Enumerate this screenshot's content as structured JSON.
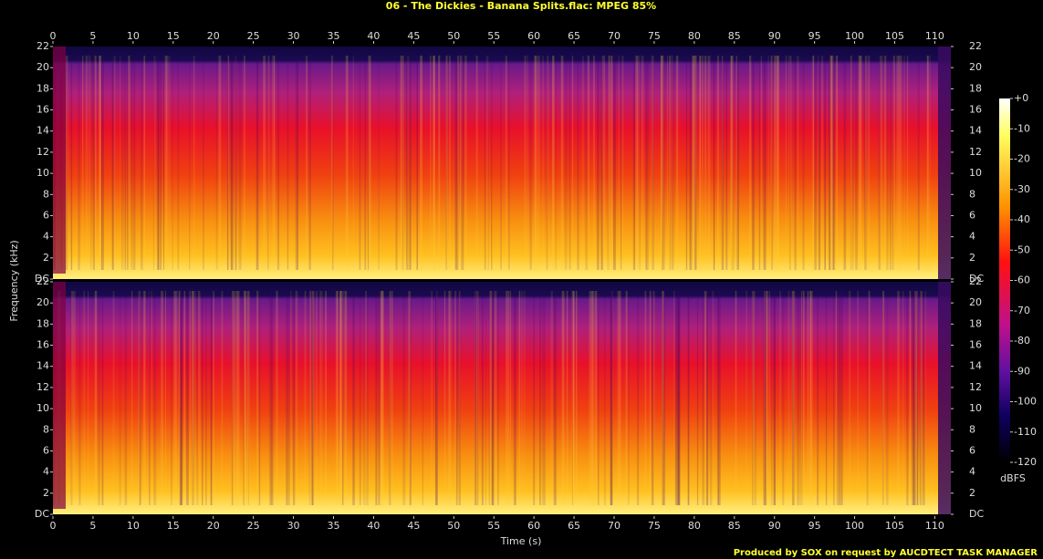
{
  "chart_data": {
    "type": "spectrogram",
    "title": "06 - The Dickies - Banana Splits.flac: MPEG 85%",
    "x_label": "Time (s)",
    "y_label": "Frequency (kHz)",
    "xlim": [
      0,
      112
    ],
    "xticks": [
      0,
      5,
      10,
      15,
      20,
      25,
      30,
      35,
      40,
      45,
      50,
      55,
      60,
      65,
      70,
      75,
      80,
      85,
      90,
      95,
      100,
      105,
      110
    ],
    "ylim": [
      0,
      22
    ],
    "yticks": [
      {
        "value": 0,
        "label": "DC"
      },
      2,
      4,
      6,
      8,
      10,
      12,
      14,
      16,
      18,
      20,
      22
    ],
    "colorbar": {
      "label": "dBFS",
      "lim": [
        -120,
        0
      ],
      "ticks": [
        {
          "value": 0,
          "label": "+0"
        },
        -10,
        -20,
        -30,
        -40,
        -50,
        -60,
        -70,
        -80,
        -90,
        -100,
        -110,
        -120
      ]
    },
    "footer": "Produced by SOX on request by AUCDTECT TASK MANAGER"
  }
}
